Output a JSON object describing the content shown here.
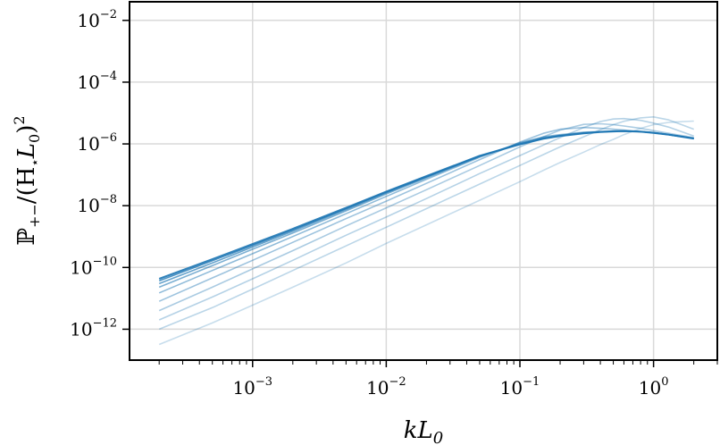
{
  "chart_data": {
    "type": "line",
    "title": "",
    "xlabel_parts": {
      "base": "kL",
      "sub": "0"
    },
    "ylabel_parts": {
      "P": "ℙ",
      "sub": "+−",
      "rest": "/(H",
      "star": "⋆",
      "L": "L",
      "Lsub": "0",
      "close": ")",
      "pow": "2"
    },
    "xscale": "log",
    "yscale": "log",
    "xlim": [
      0.00012,
      3.0
    ],
    "ylim": [
      1e-13,
      0.04
    ],
    "grid": true,
    "legend": "none",
    "x_major_ticks": [
      0.001,
      0.01,
      0.1,
      1
    ],
    "x_tick_labels": [
      {
        "base": "10",
        "exp": "−3"
      },
      {
        "base": "10",
        "exp": "−2"
      },
      {
        "base": "10",
        "exp": "−1"
      },
      {
        "base": "10",
        "exp": "0"
      }
    ],
    "y_major_ticks": [
      1e-12,
      1e-10,
      1e-08,
      1e-06,
      0.0001,
      0.01
    ],
    "y_tick_labels": [
      {
        "base": "10",
        "exp": "−12"
      },
      {
        "base": "10",
        "exp": "−10"
      },
      {
        "base": "10",
        "exp": "−8"
      },
      {
        "base": "10",
        "exp": "−6"
      },
      {
        "base": "10",
        "exp": "−4"
      },
      {
        "base": "10",
        "exp": "−2"
      }
    ],
    "base_color": "#1f77b4",
    "x": [
      0.0002,
      0.0005,
      0.001,
      0.002,
      0.005,
      0.01,
      0.02,
      0.05,
      0.1,
      0.15,
      0.2,
      0.3,
      0.4,
      0.5,
      0.6,
      0.8,
      1.0,
      1.3,
      2.0
    ],
    "series": [
      {
        "opacity": 0.25,
        "values": [
          3.2e-13,
          1.6e-12,
          6e-12,
          2.3e-11,
          1.4e-10,
          6e-10,
          2.4e-09,
          1.5e-08,
          6e-08,
          1.4e-07,
          2.5e-07,
          5.4e-07,
          9.5e-07,
          1.4e-06,
          2e-06,
          3.2e-06,
          4.2e-06,
          5e-06,
          5.5e-06
        ]
      },
      {
        "opacity": 0.3,
        "values": [
          1e-12,
          5e-12,
          2e-11,
          8e-11,
          5e-10,
          2e-09,
          8e-09,
          5e-08,
          2e-07,
          4.5e-07,
          8e-07,
          1.7e-06,
          2.9e-06,
          4.2e-06,
          5.4e-06,
          7e-06,
          7.5e-06,
          6e-06,
          3e-06
        ]
      },
      {
        "opacity": 0.33,
        "values": [
          2e-12,
          1.1e-11,
          4.3e-11,
          1.7e-10,
          1.1e-09,
          4.3e-09,
          1.7e-08,
          1.1e-07,
          4.2e-07,
          9.2e-07,
          1.6e-06,
          3.4e-06,
          5.3e-06,
          6.4e-06,
          6.6e-06,
          5.8e-06,
          4.7e-06,
          3.5e-06,
          1.8e-06
        ]
      },
      {
        "opacity": 0.38,
        "values": [
          4e-12,
          2.3e-11,
          9e-11,
          3.5e-10,
          2.2e-09,
          8.5e-09,
          3.3e-08,
          2e-07,
          8e-07,
          1.7e-06,
          2.8e-06,
          4.3e-06,
          4.5e-06,
          4.2e-06,
          3.8e-06,
          3.2e-06,
          2.7e-06,
          2.2e-06,
          1.6e-06
        ]
      },
      {
        "opacity": 0.44,
        "values": [
          8e-12,
          4.6e-11,
          1.7e-10,
          6.5e-10,
          3.8e-09,
          1.4e-08,
          5.3e-08,
          3.1e-07,
          1.15e-06,
          2.2e-06,
          3e-06,
          3.4e-06,
          3.2e-06,
          3e-06,
          2.8e-06,
          2.5e-06,
          2.3e-06,
          2e-06,
          1.5e-06
        ]
      },
      {
        "opacity": 0.5,
        "values": [
          1.5e-11,
          8e-11,
          2.8e-10,
          1e-09,
          5.5e-09,
          2e-08,
          7.2e-08,
          3.7e-07,
          1.1e-06,
          1.7e-06,
          2e-06,
          2.4e-06,
          2.5e-06,
          2.6e-06,
          2.6e-06,
          2.5e-06,
          2.3e-06,
          2e-06,
          1.5e-06
        ]
      },
      {
        "opacity": 0.58,
        "values": [
          2.3e-11,
          1.15e-10,
          3.9e-10,
          1.3e-09,
          6.8e-09,
          2.4e-08,
          8e-08,
          3.9e-07,
          1.05e-06,
          1.6e-06,
          1.9e-06,
          2.3e-06,
          2.45e-06,
          2.55e-06,
          2.6e-06,
          2.5e-06,
          2.3e-06,
          2e-06,
          1.5e-06
        ]
      },
      {
        "opacity": 0.68,
        "values": [
          3e-11,
          1.4e-10,
          4.6e-10,
          1.5e-09,
          7.5e-09,
          2.6e-08,
          8.5e-08,
          4e-07,
          1e-06,
          1.5e-06,
          1.85e-06,
          2.25e-06,
          2.45e-06,
          2.55e-06,
          2.6e-06,
          2.5e-06,
          2.3e-06,
          2e-06,
          1.5e-06
        ]
      },
      {
        "opacity": 0.8,
        "values": [
          3.7e-11,
          1.65e-10,
          5.2e-10,
          1.65e-09,
          8e-09,
          2.75e-08,
          8.8e-08,
          4.05e-07,
          9.8e-07,
          1.5e-06,
          1.82e-06,
          2.22e-06,
          2.45e-06,
          2.55e-06,
          2.6e-06,
          2.5e-06,
          2.3e-06,
          2e-06,
          1.5e-06
        ]
      },
      {
        "opacity": 0.92,
        "values": [
          4.3e-11,
          1.85e-10,
          5.7e-10,
          1.78e-09,
          8.5e-09,
          2.85e-08,
          9e-08,
          4.1e-07,
          9.7e-07,
          1.48e-06,
          1.8e-06,
          2.2e-06,
          2.45e-06,
          2.55e-06,
          2.6e-06,
          2.5e-06,
          2.3e-06,
          2e-06,
          1.5e-06
        ]
      }
    ]
  }
}
